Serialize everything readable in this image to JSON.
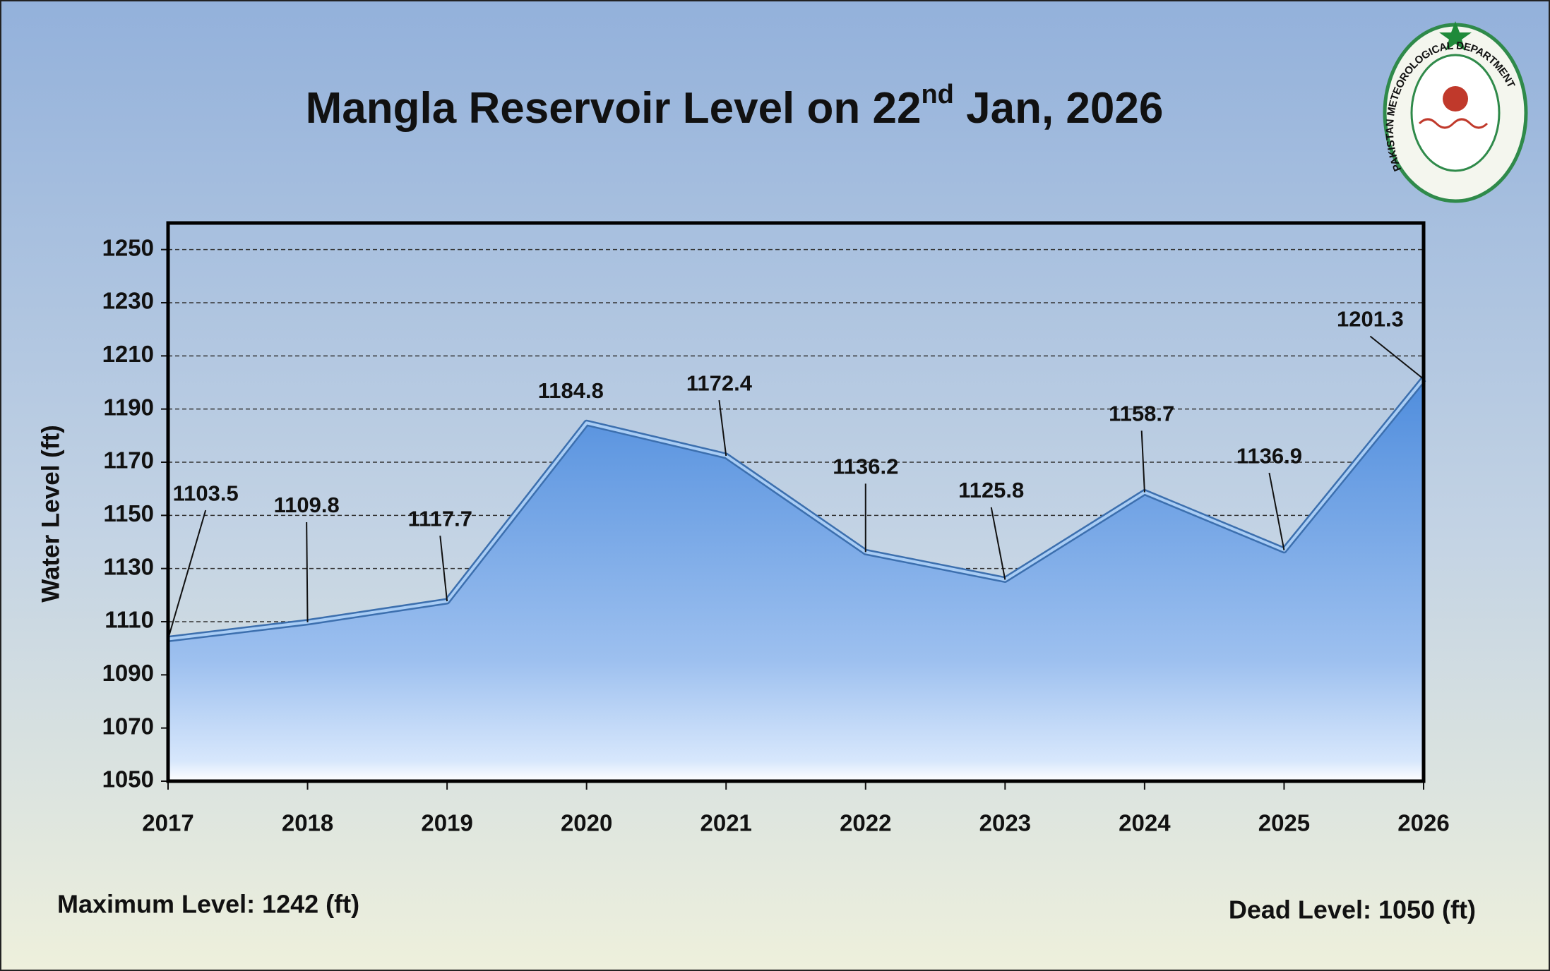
{
  "chart_data": {
    "type": "area",
    "title": {
      "main": "Mangla Reservoir Level on 22",
      "superscript": "nd",
      "rest": " Jan, 2026"
    },
    "y_label": "Water Level (ft)",
    "categories": [
      "2017",
      "2018",
      "2019",
      "2020",
      "2021",
      "2022",
      "2023",
      "2024",
      "2025",
      "2026"
    ],
    "values": [
      1103.5,
      1109.8,
      1117.7,
      1184.8,
      1172.4,
      1136.2,
      1125.8,
      1158.7,
      1136.9,
      1201.3
    ],
    "color": "#5b97e2",
    "ylim": [
      1050,
      1260
    ],
    "yticks": [
      1050,
      1070,
      1090,
      1110,
      1130,
      1150,
      1170,
      1190,
      1210,
      1230,
      1250
    ],
    "grid": true,
    "annotations": [
      "Maximum Level: 1242 (ft)",
      "Dead Level: 1050 (ft)"
    ],
    "logo_text": "PAKISTAN METEOROLOGICAL DEPARTMENT"
  }
}
